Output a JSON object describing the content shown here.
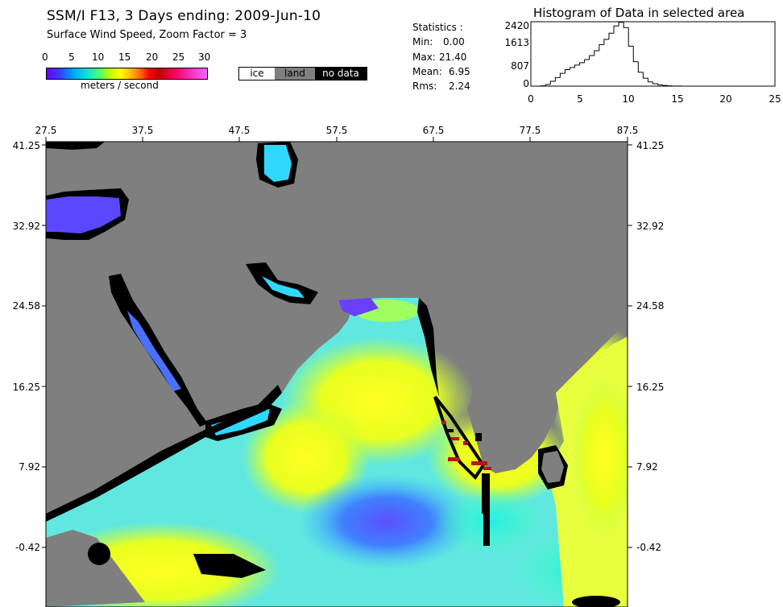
{
  "header": {
    "title": "SSM/I F13, 3 Days ending: 2009-Jun-10",
    "subtitle": "Surface Wind Speed,  Zoom Factor = 3"
  },
  "colorbar": {
    "ticks": [
      "0",
      "5",
      "10",
      "15",
      "20",
      "25",
      "30"
    ],
    "units": "meters / second",
    "range": [
      0,
      30
    ]
  },
  "legend": {
    "ice": "ice",
    "land": "land",
    "no_data": "no data"
  },
  "colors": {
    "land": "#7f7f7f",
    "no_data": "#000000",
    "ice": "#ffffff"
  },
  "statistics": {
    "heading": "Statistics :",
    "min_label": "Min:",
    "min_value": "0.00",
    "max_label": "Max:",
    "max_value": "21.40",
    "mean_label": "Mean:",
    "mean_value": "6.95",
    "rms_label": "Rms:",
    "rms_value": "2.24"
  },
  "chart_data": {
    "type": "bar",
    "title": "Histogram of Data in selected area",
    "x_ticks": [
      "0",
      "5",
      "10",
      "15",
      "20",
      "25"
    ],
    "y_ticks": [
      "2420",
      "1613",
      "807",
      "0"
    ],
    "xlim": [
      0,
      25
    ],
    "ylim": [
      0,
      2420
    ],
    "bin_width": 0.5,
    "values": [
      0,
      0,
      10,
      60,
      180,
      320,
      480,
      620,
      700,
      790,
      880,
      1000,
      1150,
      1330,
      1560,
      1760,
      1990,
      2260,
      2400,
      2200,
      1500,
      920,
      520,
      300,
      160,
      90,
      50,
      25,
      12,
      5,
      2,
      0,
      0,
      0,
      0,
      0,
      0,
      0,
      0,
      0,
      0,
      0,
      0,
      0,
      0,
      0,
      0,
      0,
      0,
      0
    ]
  },
  "map": {
    "lon_ticks": [
      "27.5",
      "37.5",
      "47.5",
      "57.5",
      "67.5",
      "77.5",
      "87.5"
    ],
    "lat_ticks": [
      "41.25",
      "32.92",
      "24.58",
      "16.25",
      "7.92",
      "-0.42"
    ]
  }
}
